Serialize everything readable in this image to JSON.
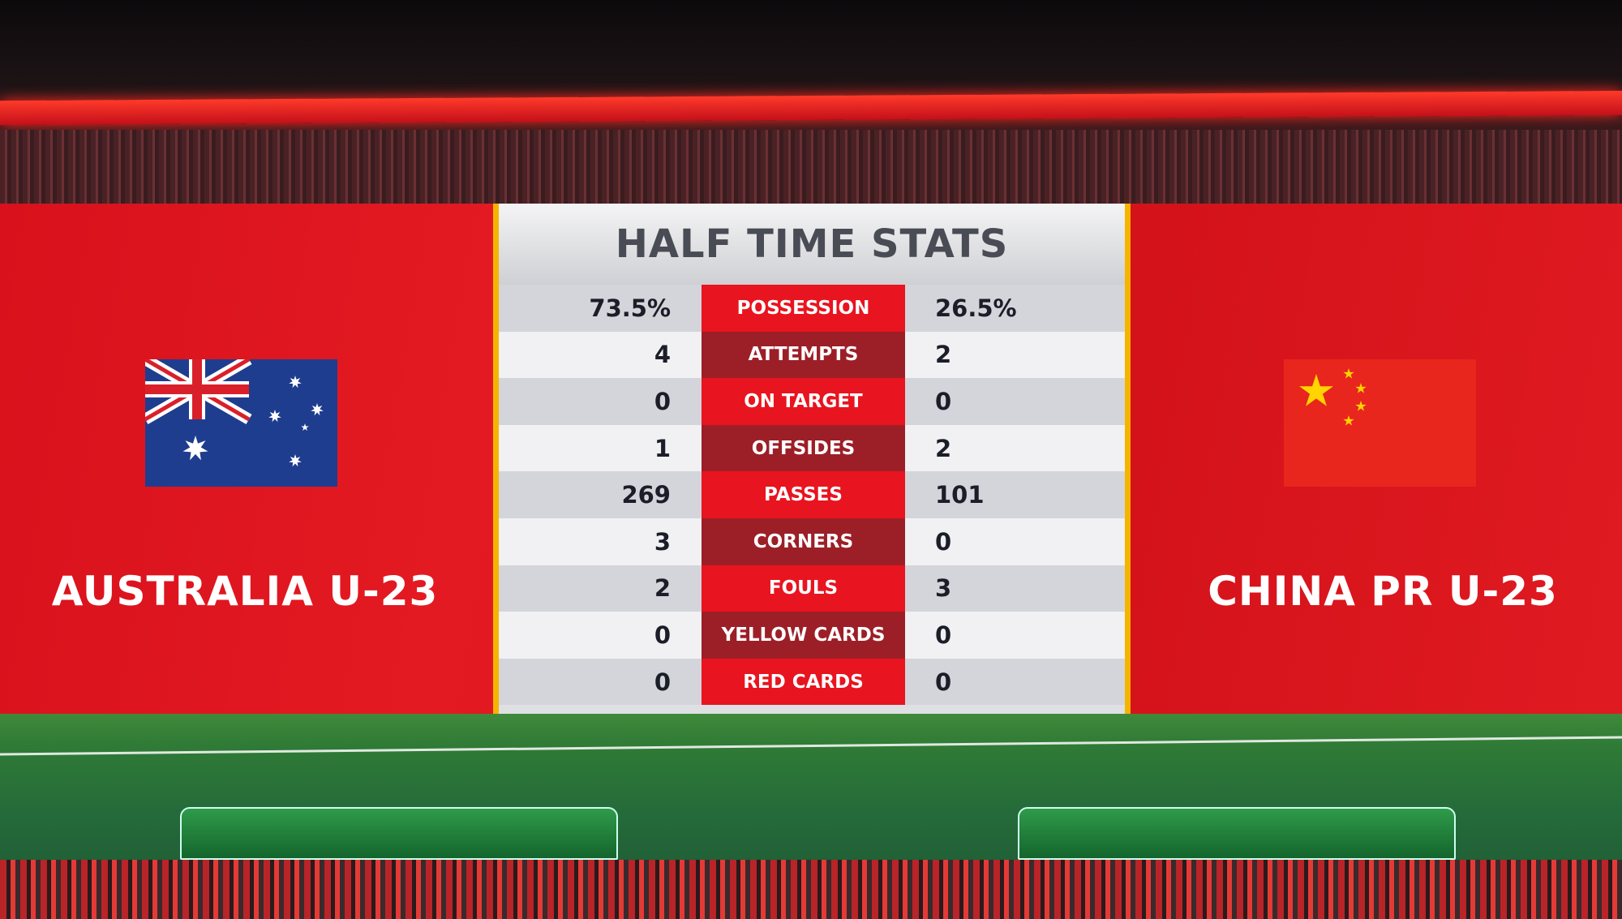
{
  "title": "HALF TIME STATS",
  "home_team": {
    "name": "AUSTRALIA U-23",
    "flag": "australia-flag-icon"
  },
  "away_team": {
    "name": "CHINA PR U-23",
    "flag": "china-flag-icon"
  },
  "stats": [
    {
      "label": "POSSESSION",
      "home": "73.5%",
      "away": "26.5%"
    },
    {
      "label": "ATTEMPTS",
      "home": "4",
      "away": "2"
    },
    {
      "label": "ON TARGET",
      "home": "0",
      "away": "0"
    },
    {
      "label": "OFFSIDES",
      "home": "1",
      "away": "2"
    },
    {
      "label": "PASSES",
      "home": "269",
      "away": "101"
    },
    {
      "label": "CORNERS",
      "home": "3",
      "away": "0"
    },
    {
      "label": "FOULS",
      "home": "2",
      "away": "3"
    },
    {
      "label": "YELLOW CARDS",
      "home": "0",
      "away": "0"
    },
    {
      "label": "RED CARDS",
      "home": "0",
      "away": "0"
    }
  ],
  "colors": {
    "banner_red": "#e01a21",
    "label_red": "#e8141f",
    "label_dark_red": "#9c1f27",
    "panel_border": "#f5b400"
  }
}
